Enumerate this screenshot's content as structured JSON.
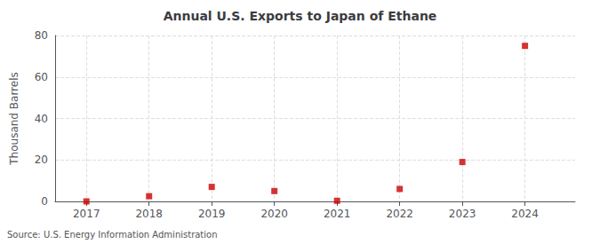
{
  "chart_data": {
    "type": "scatter",
    "title": "Annual U.S. Exports to Japan of Ethane",
    "ylabel": "Thousand Barrels",
    "source": "Source: U.S. Energy Information Administration",
    "x": [
      2017,
      2018,
      2019,
      2020,
      2021,
      2022,
      2023,
      2024
    ],
    "values": [
      0,
      2.5,
      7,
      5,
      0.3,
      6,
      19,
      75
    ],
    "xlim": [
      2016.5,
      2024.8
    ],
    "xticks": [
      2017,
      2018,
      2019,
      2020,
      2021,
      2022,
      2023,
      2024
    ],
    "ylim": [
      0,
      80
    ],
    "yticks": [
      0,
      20,
      40,
      60,
      80
    ],
    "color": "#cc0000",
    "marker": "square",
    "grid": true
  }
}
